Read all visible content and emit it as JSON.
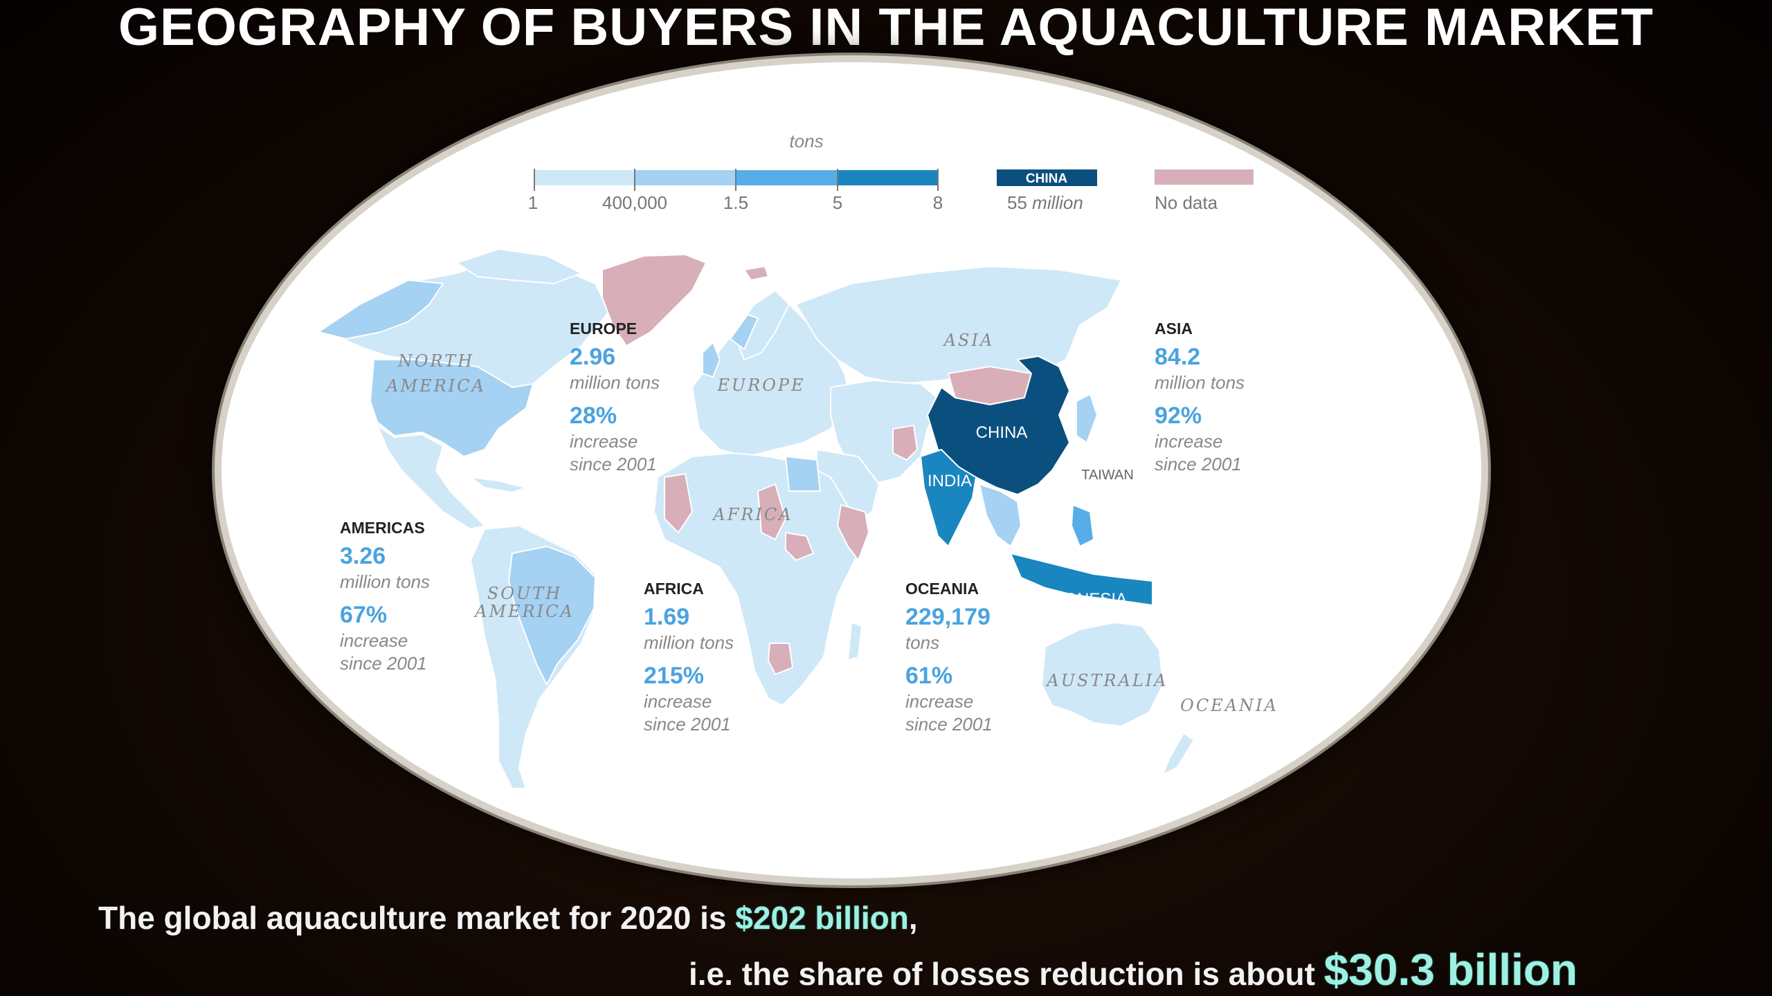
{
  "title": "GEOGRAPHY OF BUYERS IN THE AQUACULTURE MARKET",
  "legend": {
    "unit": "tons",
    "ticks": [
      "1",
      "400,000",
      "1.5",
      "5",
      "8"
    ],
    "china_label": "CHINA",
    "china_value": "55",
    "china_unit": "million",
    "no_data": "No data",
    "colors": {
      "c1": "#cfe8f8",
      "c2": "#a5d1f3",
      "c3": "#56ade8",
      "c4": "#1a86c0",
      "china": "#0b4f7f",
      "nodata": "#d8aeb9"
    }
  },
  "regions": [
    {
      "key": "europe",
      "name": "EUROPE",
      "value": "2.96",
      "unit": "million tons",
      "pct": "28%",
      "inc": "increase",
      "since": "since 2001"
    },
    {
      "key": "asia",
      "name": "ASIA",
      "value": "84.2",
      "unit": "million tons",
      "pct": "92%",
      "inc": "increase",
      "since": "since 2001"
    },
    {
      "key": "americas",
      "name": "AMERICAS",
      "value": "3.26",
      "unit": "million tons",
      "pct": "67%",
      "inc": "increase",
      "since": "since 2001"
    },
    {
      "key": "africa",
      "name": "AFRICA",
      "value": "1.69",
      "unit": "million tons",
      "pct": "215%",
      "inc": "increase",
      "since": "since 2001"
    },
    {
      "key": "oceania",
      "name": "OCEANIA",
      "value": "229,179",
      "unit": "tons",
      "pct": "61%",
      "inc": "increase",
      "since": "since 2001"
    }
  ],
  "map_labels": {
    "north": "NORTH",
    "america": "AMERICA",
    "south": "SOUTH",
    "europe": "EUROPE",
    "asia": "ASIA",
    "africa": "AFRICA",
    "australia": "AUSTRALIA",
    "oceania": "OCEANIA",
    "china": "CHINA",
    "india": "INDIA",
    "indonesia": "INDONESIA",
    "taiwan": "TAIWAN"
  },
  "bottom": {
    "line1_pre": "The global aquaculture market for 2020 is ",
    "line1_hl": "$202 billion",
    "line1_post": ",",
    "line2_pre": "i.e. the share of losses reduction is about ",
    "line2_hl": "$30.3 billion"
  }
}
